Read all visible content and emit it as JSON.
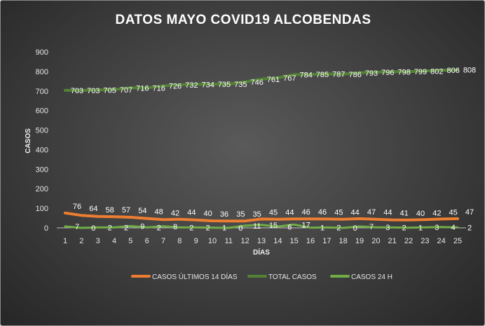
{
  "chart_data": {
    "type": "line",
    "title": "DATOS  MAYO  COVID19  ALCOBENDAS",
    "xlabel": "DÍAS",
    "ylabel": "CASOS",
    "ylim": [
      0,
      900
    ],
    "yticks": [
      0,
      100,
      200,
      300,
      400,
      500,
      600,
      700,
      800,
      900
    ],
    "x": [
      1,
      2,
      3,
      4,
      5,
      6,
      7,
      8,
      9,
      10,
      11,
      12,
      13,
      14,
      15,
      16,
      17,
      18,
      19,
      20,
      21,
      22,
      23,
      24,
      25
    ],
    "grid": false,
    "legend_position": "bottom",
    "series": [
      {
        "name": "CASOS ÚLTIMOS 14 DÍAS",
        "color": "#ed7d31",
        "values": [
          76,
          64,
          58,
          57,
          54,
          48,
          42,
          44,
          40,
          36,
          35,
          35,
          45,
          44,
          46,
          46,
          45,
          44,
          47,
          44,
          41,
          40,
          42,
          45,
          47
        ]
      },
      {
        "name": "TOTAL CASOS",
        "color": "#548235",
        "values": [
          703,
          703,
          705,
          707,
          716,
          716,
          726,
          732,
          734,
          735,
          735,
          746,
          761,
          767,
          784,
          785,
          787,
          786,
          793,
          796,
          798,
          799,
          802,
          806,
          808
        ]
      },
      {
        "name": "CASOS 24 H",
        "color": "#70ad47",
        "values": [
          7,
          0,
          2,
          2,
          9,
          2,
          8,
          2,
          2,
          1,
          0,
          11,
          15,
          6,
          17,
          1,
          2,
          0,
          7,
          3,
          2,
          1,
          3,
          4,
          2
        ]
      }
    ]
  }
}
